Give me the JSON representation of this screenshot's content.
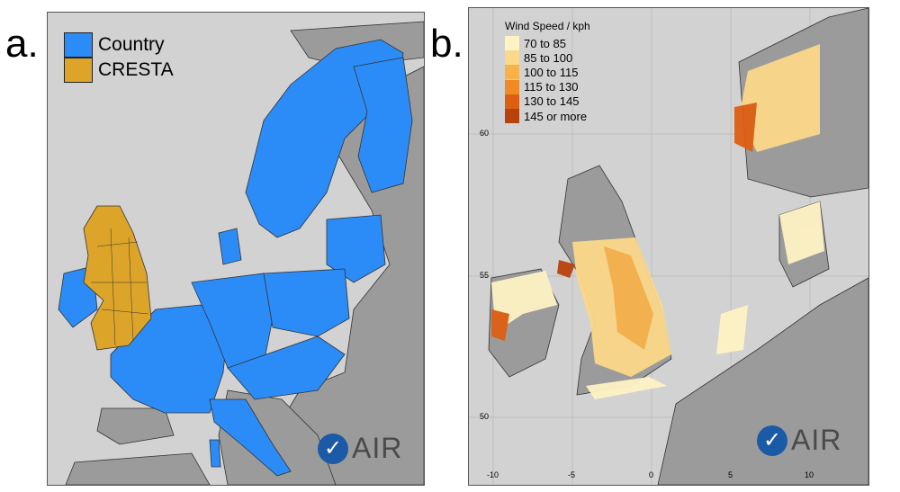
{
  "panels": {
    "a": {
      "letter": "a.",
      "legend": [
        {
          "label": "Country",
          "color": "#2b8cf7"
        },
        {
          "label": "CRESTA",
          "color": "#dca52a"
        }
      ],
      "logo": "AIR"
    },
    "b": {
      "letter": "b.",
      "legend_title": "Wind Speed / kph",
      "legend": [
        {
          "label": "70 to 85",
          "color": "#fff3c4"
        },
        {
          "label": "85 to 100",
          "color": "#fbd88a"
        },
        {
          "label": "100 to 115",
          "color": "#f7b24a"
        },
        {
          "label": "115 to 130",
          "color": "#f08a24"
        },
        {
          "label": "130 to 145",
          "color": "#de5f14"
        },
        {
          "label": "145 or more",
          "color": "#b8420c"
        }
      ],
      "lat_ticks": [
        "60",
        "55",
        "50"
      ],
      "lon_ticks": [
        "-10",
        "-5",
        "0",
        "5",
        "10"
      ],
      "logo": "AIR"
    }
  },
  "colors": {
    "sea": "#d2d2d2",
    "land_other": "#9b9b9b",
    "border": "#333333"
  }
}
